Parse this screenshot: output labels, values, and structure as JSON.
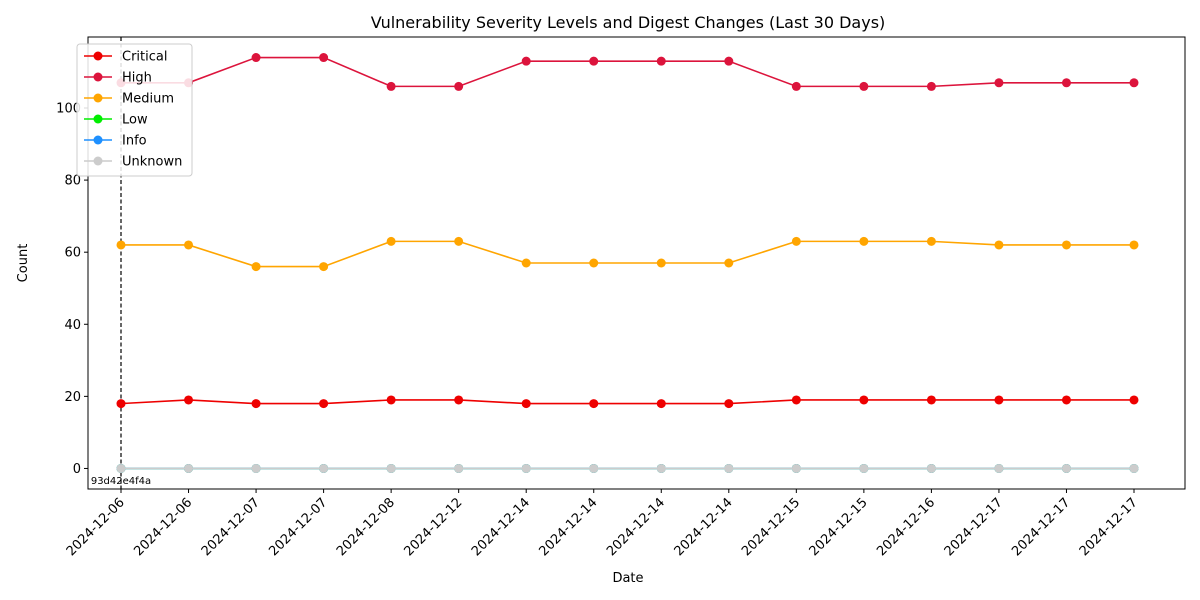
{
  "chart_data": {
    "type": "line",
    "title": "Vulnerability Severity Levels and Digest Changes (Last 30 Days)",
    "xlabel": "Date",
    "ylabel": "Count",
    "categories": [
      "2024-12-06",
      "2024-12-06",
      "2024-12-07",
      "2024-12-07",
      "2024-12-08",
      "2024-12-12",
      "2024-12-14",
      "2024-12-14",
      "2024-12-14",
      "2024-12-14",
      "2024-12-15",
      "2024-12-15",
      "2024-12-16",
      "2024-12-17",
      "2024-12-17",
      "2024-12-17"
    ],
    "yticks": [
      0,
      20,
      40,
      60,
      80,
      100
    ],
    "ylim": [
      -5.7,
      119.7
    ],
    "grid": false,
    "legend_position": "upper-left",
    "series": [
      {
        "name": "Critical",
        "color": "#ee0000",
        "values": [
          18,
          19,
          18,
          18,
          19,
          19,
          18,
          18,
          18,
          18,
          19,
          19,
          19,
          19,
          19,
          19
        ]
      },
      {
        "name": "High",
        "color": "#dc143c",
        "values": [
          107,
          107,
          114,
          114,
          106,
          106,
          113,
          113,
          113,
          113,
          106,
          106,
          106,
          107,
          107,
          107
        ]
      },
      {
        "name": "Medium",
        "color": "#ffa500",
        "values": [
          62,
          62,
          56,
          56,
          63,
          63,
          57,
          57,
          57,
          57,
          63,
          63,
          63,
          62,
          62,
          62
        ]
      },
      {
        "name": "Low",
        "color": "#00ee00",
        "values": [
          0,
          0,
          0,
          0,
          0,
          0,
          0,
          0,
          0,
          0,
          0,
          0,
          0,
          0,
          0,
          0
        ]
      },
      {
        "name": "Info",
        "color": "#1e90ff",
        "values": [
          0,
          0,
          0,
          0,
          0,
          0,
          0,
          0,
          0,
          0,
          0,
          0,
          0,
          0,
          0,
          0
        ]
      },
      {
        "name": "Unknown",
        "color": "#cccccc",
        "values": [
          0,
          0,
          0,
          0,
          0,
          0,
          0,
          0,
          0,
          0,
          0,
          0,
          0,
          0,
          0,
          0
        ]
      }
    ],
    "annotations": [
      {
        "text": "93d42e4f4a",
        "x_index": 0,
        "style": "dashed-vertical-line"
      }
    ]
  }
}
